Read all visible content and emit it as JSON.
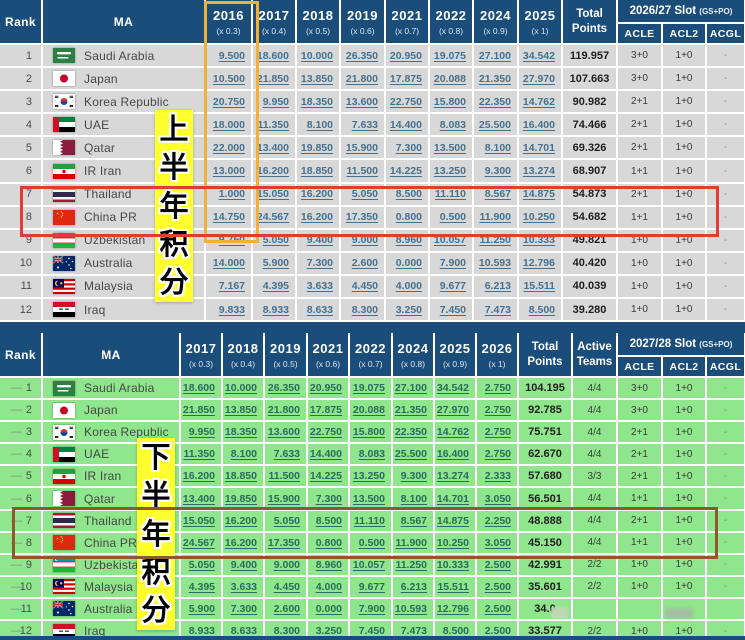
{
  "colors": {
    "header_navy": "#1b4d7a",
    "row_gray": "#d8d8d8",
    "row_green": "#8fe68c",
    "value_link_top": "#46718e",
    "value_link_bottom": "#2a6c5d",
    "annotation_yellow": "#ffff2e",
    "box_red": "#e23b36",
    "box_orange": "#edb13c",
    "box_brown": "#8b5a28"
  },
  "annotations": {
    "top_vertical_text": "上半年积分",
    "bottom_vertical_text": "下半年积分"
  },
  "top_table": {
    "header": {
      "rank": "Rank",
      "ma": "MA",
      "years": [
        {
          "year": "2016",
          "mult": "(x 0.3)"
        },
        {
          "year": "2017",
          "mult": "(x 0.4)"
        },
        {
          "year": "2018",
          "mult": "(x 0.5)"
        },
        {
          "year": "2019",
          "mult": "(x 0.6)"
        },
        {
          "year": "2021",
          "mult": "(x 0.7)"
        },
        {
          "year": "2022",
          "mult": "(x 0.8)"
        },
        {
          "year": "2024",
          "mult": "(x 0.9)"
        },
        {
          "year": "2025",
          "mult": "(x 1)"
        }
      ],
      "total": "Total Points",
      "slot_title": "2026/27 Slot",
      "slot_sub": "(GS+PO)",
      "slot_cols": [
        "ACLE",
        "ACL2",
        "ACGL"
      ]
    },
    "rows": [
      {
        "rank": "1",
        "country": "Saudi Arabia",
        "flag": "saudi-arabia",
        "values": [
          "9.500",
          "18.600",
          "10.000",
          "26.350",
          "20.950",
          "19.075",
          "27.100",
          "34.542"
        ],
        "total": "119.957",
        "slots": [
          "3+0",
          "1+0",
          "-"
        ]
      },
      {
        "rank": "2",
        "country": "Japan",
        "flag": "japan",
        "values": [
          "10.500",
          "21.850",
          "13.850",
          "21.800",
          "17.875",
          "20.088",
          "21.350",
          "27.970"
        ],
        "total": "107.663",
        "slots": [
          "3+0",
          "1+0",
          "-"
        ]
      },
      {
        "rank": "3",
        "country": "Korea Republic",
        "flag": "korea-republic",
        "values": [
          "20.750",
          "9.950",
          "18.350",
          "13.600",
          "22.750",
          "15.800",
          "22.350",
          "14.762"
        ],
        "total": "90.982",
        "slots": [
          "2+1",
          "1+0",
          "-"
        ]
      },
      {
        "rank": "4",
        "country": "UAE",
        "flag": "uae",
        "values": [
          "18.000",
          "11.350",
          "8.100",
          "7.633",
          "14.400",
          "8.083",
          "25.500",
          "16.400"
        ],
        "total": "74.466",
        "slots": [
          "2+1",
          "1+0",
          "-"
        ]
      },
      {
        "rank": "5",
        "country": "Qatar",
        "flag": "qatar",
        "values": [
          "22.000",
          "13.400",
          "19.850",
          "15.900",
          "7.300",
          "13.500",
          "8.100",
          "14.701"
        ],
        "total": "69.326",
        "slots": [
          "2+1",
          "1+0",
          "-"
        ]
      },
      {
        "rank": "6",
        "country": "IR Iran",
        "flag": "ir-iran",
        "values": [
          "13.000",
          "16.200",
          "18.850",
          "11.500",
          "14.225",
          "13.250",
          "9.300",
          "13.274"
        ],
        "total": "68.907",
        "slots": [
          "1+1",
          "1+0",
          "-"
        ]
      },
      {
        "rank": "7",
        "country": "Thailand",
        "flag": "thailand",
        "values": [
          "1.000",
          "15.050",
          "16.200",
          "5.050",
          "8.500",
          "11.110",
          "8.567",
          "14.875"
        ],
        "total": "54.873",
        "slots": [
          "2+1",
          "1+0",
          "-"
        ]
      },
      {
        "rank": "8",
        "country": "China PR",
        "flag": "china-pr",
        "values": [
          "14.750",
          "24.567",
          "16.200",
          "17.350",
          "0.800",
          "0.500",
          "11.900",
          "10.250"
        ],
        "total": "54.682",
        "slots": [
          "1+1",
          "1+0",
          "-"
        ]
      },
      {
        "rank": "9",
        "country": "Uzbekistan",
        "flag": "uzbekistan",
        "values": [
          "9.750",
          "5.050",
          "9.400",
          "9.000",
          "8.960",
          "10.057",
          "11.250",
          "10.333"
        ],
        "total": "49.821",
        "slots": [
          "1+0",
          "1+0",
          "-"
        ]
      },
      {
        "rank": "10",
        "country": "Australia",
        "flag": "australia",
        "values": [
          "14.000",
          "5.900",
          "7.300",
          "2.600",
          "0.000",
          "7.900",
          "10.593",
          "12.796"
        ],
        "total": "40.420",
        "slots": [
          "1+0",
          "1+0",
          "-"
        ]
      },
      {
        "rank": "11",
        "country": "Malaysia",
        "flag": "malaysia",
        "values": [
          "7.167",
          "4.395",
          "3.633",
          "4.450",
          "4.000",
          "9.677",
          "6.213",
          "15.511"
        ],
        "total": "40.039",
        "slots": [
          "1+0",
          "1+0",
          "-"
        ]
      },
      {
        "rank": "12",
        "country": "Iraq",
        "flag": "iraq",
        "values": [
          "9.833",
          "8.933",
          "8.633",
          "8.300",
          "3.250",
          "7.450",
          "7.473",
          "8.500"
        ],
        "total": "39.280",
        "slots": [
          "1+0",
          "1+0",
          "-"
        ]
      }
    ]
  },
  "bottom_table": {
    "header": {
      "rank": "Rank",
      "ma": "MA",
      "years": [
        {
          "year": "2017",
          "mult": "(x 0.3)"
        },
        {
          "year": "2018",
          "mult": "(x 0.4)"
        },
        {
          "year": "2019",
          "mult": "(x 0.5)"
        },
        {
          "year": "2021",
          "mult": "(x 0.6)"
        },
        {
          "year": "2022",
          "mult": "(x 0.7)"
        },
        {
          "year": "2024",
          "mult": "(x 0.8)"
        },
        {
          "year": "2025",
          "mult": "(x 0.9)"
        },
        {
          "year": "2026",
          "mult": "(x 1)"
        }
      ],
      "total": "Total Points",
      "active": "Active Teams",
      "slot_title": "2027/28 Slot",
      "slot_sub": "(GS+PO)",
      "slot_cols": [
        "ACLE",
        "ACL2",
        "ACGL"
      ]
    },
    "rows": [
      {
        "rank": "1",
        "rank_prefix": "—",
        "country": "Saudi Arabia",
        "flag": "saudi-arabia",
        "values": [
          "18.600",
          "10.000",
          "26.350",
          "20.950",
          "19.075",
          "27.100",
          "34.542",
          "2.750"
        ],
        "total": "104.195",
        "active": "4/4",
        "slots": [
          "3+0",
          "1+0",
          "-"
        ]
      },
      {
        "rank": "2",
        "rank_prefix": "—",
        "country": "Japan",
        "flag": "japan",
        "values": [
          "21.850",
          "13.850",
          "21.800",
          "17.875",
          "20.088",
          "21.350",
          "27.970",
          "2.750"
        ],
        "total": "92.785",
        "active": "4/4",
        "slots": [
          "3+0",
          "1+0",
          "-"
        ]
      },
      {
        "rank": "3",
        "rank_prefix": "—",
        "country": "Korea Republic",
        "flag": "korea-republic",
        "values": [
          "9.950",
          "18.350",
          "13.600",
          "22.750",
          "15.800",
          "22.350",
          "14.762",
          "2.750"
        ],
        "total": "75.751",
        "active": "4/4",
        "slots": [
          "2+1",
          "1+0",
          "-"
        ]
      },
      {
        "rank": "4",
        "rank_prefix": "—",
        "country": "UAE",
        "flag": "uae",
        "values": [
          "11.350",
          "8.100",
          "7.633",
          "14.400",
          "8.083",
          "25.500",
          "16.400",
          "2.750"
        ],
        "total": "62.670",
        "active": "4/4",
        "slots": [
          "2+1",
          "1+0",
          "-"
        ]
      },
      {
        "rank": "5",
        "rank_prefix": "—",
        "country": "IR Iran",
        "flag": "ir-iran",
        "values": [
          "16.200",
          "18.850",
          "11.500",
          "14.225",
          "13.250",
          "9.300",
          "13.274",
          "2.333"
        ],
        "total": "57.680",
        "active": "3/3",
        "slots": [
          "2+1",
          "1+0",
          "-"
        ]
      },
      {
        "rank": "6",
        "rank_prefix": "—",
        "country": "Qatar",
        "flag": "qatar",
        "values": [
          "13.400",
          "19.850",
          "15.900",
          "7.300",
          "13.500",
          "8.100",
          "14.701",
          "3.050"
        ],
        "total": "56.501",
        "active": "4/4",
        "slots": [
          "1+1",
          "1+0",
          "-"
        ]
      },
      {
        "rank": "7",
        "rank_prefix": "—",
        "country": "Thailand",
        "flag": "thailand",
        "values": [
          "15.050",
          "16.200",
          "5.050",
          "8.500",
          "11.110",
          "8.567",
          "14.875",
          "2.250"
        ],
        "total": "48.888",
        "active": "4/4",
        "slots": [
          "2+1",
          "1+0",
          "-"
        ]
      },
      {
        "rank": "8",
        "rank_prefix": "—",
        "country": "China PR",
        "flag": "china-pr",
        "values": [
          "24.567",
          "16.200",
          "17.350",
          "0.800",
          "0.500",
          "11.900",
          "10.250",
          "3.050"
        ],
        "total": "45.150",
        "active": "4/4",
        "slots": [
          "1+1",
          "1+0",
          "-"
        ]
      },
      {
        "rank": "9",
        "rank_prefix": "—",
        "country": "Uzbekistan",
        "flag": "uzbekistan",
        "values": [
          "5.050",
          "9.400",
          "9.000",
          "8.960",
          "10.057",
          "11.250",
          "10.333",
          "2.500"
        ],
        "total": "42.991",
        "active": "2/2",
        "slots": [
          "1+0",
          "1+0",
          "-"
        ]
      },
      {
        "rank": "10",
        "rank_prefix": "—",
        "country": "Malaysia",
        "flag": "malaysia",
        "values": [
          "4.395",
          "3.633",
          "4.450",
          "4.000",
          "9.677",
          "6.213",
          "15.511",
          "2.500"
        ],
        "total": "35.601",
        "active": "2/2",
        "slots": [
          "1+0",
          "1+0",
          "-"
        ]
      },
      {
        "rank": "11",
        "rank_prefix": "—",
        "country": "Australia",
        "flag": "australia",
        "values": [
          "5.900",
          "7.300",
          "2.600",
          "0.000",
          "7.900",
          "10.593",
          "12.796",
          "2.500"
        ],
        "total": "34.0",
        "active": "",
        "slots": [
          "",
          "",
          ""
        ]
      },
      {
        "rank": "12",
        "rank_prefix": "—",
        "country": "Iraq",
        "flag": "iraq",
        "values": [
          "8.933",
          "8.633",
          "8.300",
          "3.250",
          "7.450",
          "7.473",
          "8.500",
          "2.500"
        ],
        "total": "33.577",
        "active": "2/2",
        "slots": [
          "1+0",
          "1+0",
          "-"
        ]
      }
    ]
  }
}
